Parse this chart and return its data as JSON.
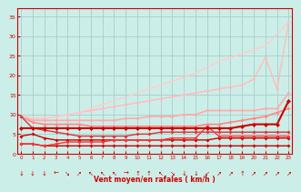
{
  "title": "",
  "xlabel": "Vent moyen/en rafales ( km/h )",
  "bg_color": "#cceee8",
  "grid_color": "#aacccc",
  "x_ticks": [
    0,
    1,
    2,
    3,
    4,
    5,
    6,
    7,
    8,
    9,
    10,
    11,
    12,
    13,
    14,
    15,
    16,
    17,
    18,
    19,
    20,
    21,
    22,
    23
  ],
  "y_ticks": [
    0,
    5,
    10,
    15,
    20,
    25,
    30,
    35
  ],
  "xlim": [
    -0.3,
    23.3
  ],
  "ylim": [
    0,
    37
  ],
  "series": [
    {
      "x": [
        0,
        1,
        2,
        3,
        4,
        5,
        6,
        7,
        8,
        9,
        10,
        11,
        12,
        13,
        14,
        15,
        16,
        17,
        18,
        19,
        20,
        21,
        22,
        23
      ],
      "y": [
        2.5,
        2.5,
        2.0,
        2.0,
        2.0,
        2.0,
        2.0,
        2.0,
        2.0,
        2.0,
        2.0,
        2.0,
        2.0,
        2.0,
        2.0,
        2.0,
        2.0,
        2.0,
        2.0,
        2.0,
        2.0,
        2.0,
        2.0,
        2.0
      ],
      "color": "#cc0000",
      "lw": 1.0,
      "marker": "D",
      "ms": 2.0,
      "zorder": 4
    },
    {
      "x": [
        0,
        1,
        2,
        3,
        4,
        5,
        6,
        7,
        8,
        9,
        10,
        11,
        12,
        13,
        14,
        15,
        16,
        17,
        18,
        19,
        20,
        21,
        22,
        23
      ],
      "y": [
        4.5,
        5.0,
        4.0,
        3.5,
        3.5,
        3.5,
        3.5,
        3.5,
        3.5,
        3.5,
        3.5,
        3.5,
        3.5,
        3.5,
        3.5,
        3.5,
        3.5,
        4.0,
        4.0,
        4.0,
        4.0,
        4.0,
        4.0,
        4.0
      ],
      "color": "#cc0000",
      "lw": 1.0,
      "marker": "D",
      "ms": 2.0,
      "zorder": 4
    },
    {
      "x": [
        0,
        1,
        2,
        3,
        4,
        5,
        6,
        7,
        8,
        9,
        10,
        11,
        12,
        13,
        14,
        15,
        16,
        17,
        18,
        19,
        20,
        21,
        22,
        23
      ],
      "y": [
        9.5,
        6.5,
        6.0,
        5.5,
        5.0,
        4.5,
        4.5,
        4.5,
        4.5,
        4.5,
        5.0,
        5.0,
        5.5,
        5.5,
        5.5,
        5.5,
        5.5,
        5.5,
        5.5,
        5.5,
        5.5,
        5.5,
        5.5,
        5.5
      ],
      "color": "#dd3333",
      "lw": 1.0,
      "marker": "D",
      "ms": 2.0,
      "zorder": 4
    },
    {
      "x": [
        0,
        1,
        2,
        3,
        4,
        5,
        6,
        7,
        8,
        9,
        10,
        11,
        12,
        13,
        14,
        15,
        16,
        17,
        18,
        19,
        20,
        21,
        22,
        23
      ],
      "y": [
        2.5,
        2.5,
        2.0,
        2.5,
        3.0,
        3.0,
        3.0,
        3.0,
        3.5,
        3.5,
        3.5,
        3.5,
        3.5,
        4.0,
        4.0,
        4.0,
        7.0,
        4.5,
        4.5,
        4.5,
        4.5,
        4.5,
        4.5,
        4.5
      ],
      "color": "#ff3333",
      "lw": 1.0,
      "marker": "D",
      "ms": 2.0,
      "zorder": 4
    },
    {
      "x": [
        0,
        1,
        2,
        3,
        4,
        5,
        6,
        7,
        8,
        9,
        10,
        11,
        12,
        13,
        14,
        15,
        16,
        17,
        18,
        19,
        20,
        21,
        22,
        23
      ],
      "y": [
        6.5,
        6.5,
        6.5,
        6.5,
        6.5,
        6.5,
        6.5,
        6.5,
        6.5,
        6.5,
        6.5,
        6.5,
        6.5,
        6.5,
        6.5,
        6.5,
        6.5,
        6.5,
        6.5,
        7.0,
        7.5,
        7.5,
        7.5,
        13.5
      ],
      "color": "#cc0000",
      "lw": 1.5,
      "marker": "D",
      "ms": 2.5,
      "zorder": 5
    },
    {
      "x": [
        0,
        1,
        2,
        3,
        4,
        5,
        6,
        7,
        8,
        9,
        10,
        11,
        12,
        13,
        14,
        15,
        16,
        17,
        18,
        19,
        20,
        21,
        22,
        23
      ],
      "y": [
        9.5,
        8.0,
        7.5,
        7.5,
        7.5,
        7.5,
        7.0,
        7.0,
        7.0,
        7.0,
        7.0,
        7.0,
        7.0,
        7.0,
        7.0,
        7.0,
        7.5,
        7.5,
        8.0,
        8.5,
        9.0,
        9.5,
        10.5,
        11.5
      ],
      "color": "#ff8888",
      "lw": 1.2,
      "marker": "D",
      "ms": 2.0,
      "zorder": 3
    },
    {
      "x": [
        0,
        1,
        2,
        3,
        4,
        5,
        6,
        7,
        8,
        9,
        10,
        11,
        12,
        13,
        14,
        15,
        16,
        17,
        18,
        19,
        20,
        21,
        22,
        23
      ],
      "y": [
        9.5,
        8.5,
        8.5,
        8.5,
        8.5,
        8.5,
        8.5,
        8.5,
        8.5,
        9.0,
        9.0,
        9.5,
        9.5,
        9.5,
        10.0,
        10.0,
        11.0,
        11.0,
        11.0,
        11.0,
        11.0,
        11.5,
        11.5,
        15.5
      ],
      "color": "#ffaaaa",
      "lw": 1.2,
      "marker": "D",
      "ms": 2.0,
      "zorder": 3
    },
    {
      "x": [
        0,
        1,
        2,
        3,
        4,
        5,
        6,
        7,
        8,
        9,
        10,
        11,
        12,
        13,
        14,
        15,
        16,
        17,
        18,
        19,
        20,
        21,
        22,
        23
      ],
      "y": [
        9.5,
        9.0,
        9.0,
        9.5,
        10.0,
        10.5,
        11.0,
        11.5,
        12.0,
        12.5,
        13.0,
        13.5,
        14.0,
        14.5,
        15.0,
        15.5,
        16.0,
        16.5,
        17.0,
        17.5,
        19.0,
        24.5,
        16.5,
        33.5
      ],
      "color": "#ffbbbb",
      "lw": 1.0,
      "marker": "D",
      "ms": 2.0,
      "zorder": 2
    },
    {
      "x": [
        0,
        1,
        2,
        3,
        4,
        5,
        6,
        7,
        8,
        9,
        10,
        11,
        12,
        13,
        14,
        15,
        16,
        17,
        18,
        19,
        20,
        21,
        22,
        23
      ],
      "y": [
        9.5,
        9.0,
        9.0,
        9.5,
        10.0,
        10.5,
        11.5,
        12.5,
        13.5,
        14.5,
        15.5,
        16.5,
        17.5,
        18.5,
        19.5,
        20.5,
        22.0,
        23.5,
        24.5,
        25.5,
        26.5,
        27.5,
        30.5,
        33.5
      ],
      "color": "#ffcccc",
      "lw": 1.0,
      "marker": null,
      "ms": 0,
      "zorder": 2
    }
  ],
  "arrows": [
    "↓",
    "↓",
    "↓",
    "←",
    "↘",
    "↗",
    "↖",
    "↖",
    "↖",
    "→",
    "↑",
    "↑",
    "↖",
    "↘",
    "↓",
    "↓",
    "↙",
    "↗",
    "↗",
    "↑",
    "↗",
    "↗",
    "↗",
    "↗"
  ]
}
